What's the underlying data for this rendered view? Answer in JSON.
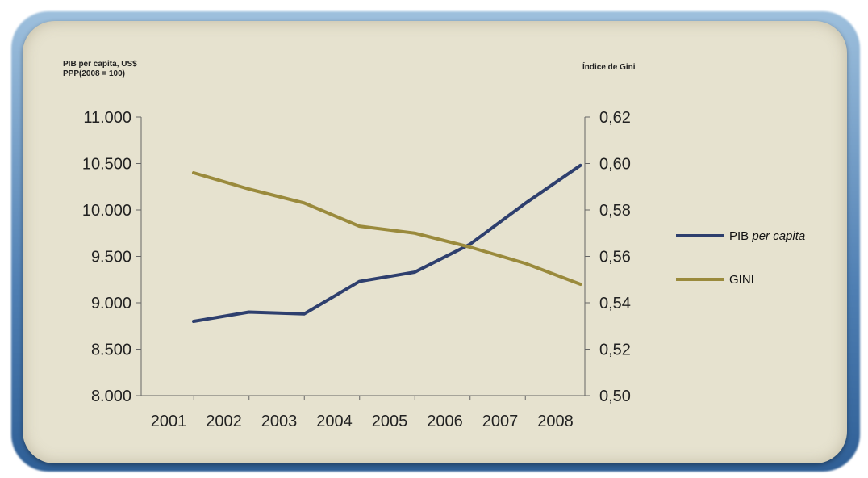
{
  "chart_data": {
    "type": "line",
    "left_axis_title_line1": "PIB per capita, US$",
    "left_axis_title_line2": "PPP(2008 = 100)",
    "right_axis_title": "Índice de Gini",
    "x_categories": [
      "2001",
      "2002",
      "2003",
      "2004",
      "2005",
      "2006",
      "2007",
      "2008"
    ],
    "left_ticks": [
      "11.000",
      "10.500",
      "10.000",
      "9.500",
      "9.000",
      "8.500",
      "8.000"
    ],
    "right_ticks": [
      "0,62",
      "0,60",
      "0,58",
      "0,56",
      "0,54",
      "0,52",
      "0,50"
    ],
    "ylim_left": [
      8000,
      11000
    ],
    "ylim_right": [
      0.5,
      0.62
    ],
    "series": [
      {
        "name": "PIB per capita",
        "name_plain": "PIB",
        "name_italic": "per capita",
        "axis": "left",
        "color": "#2e3f6e",
        "x": [
          2001,
          2002,
          2003,
          2004,
          2005,
          2006,
          2007,
          2008
        ],
        "values": [
          8800,
          8900,
          8880,
          9230,
          9330,
          9630,
          10070,
          10480
        ]
      },
      {
        "name": "GINI",
        "name_plain": "GINI",
        "name_italic": "",
        "axis": "right",
        "color": "#9a8a3c",
        "x": [
          2001,
          2002,
          2003,
          2004,
          2005,
          2006,
          2007,
          2008
        ],
        "values": [
          0.596,
          0.589,
          0.583,
          0.573,
          0.57,
          0.564,
          0.557,
          0.548
        ]
      }
    ],
    "legend_position": "right",
    "grid": false
  }
}
